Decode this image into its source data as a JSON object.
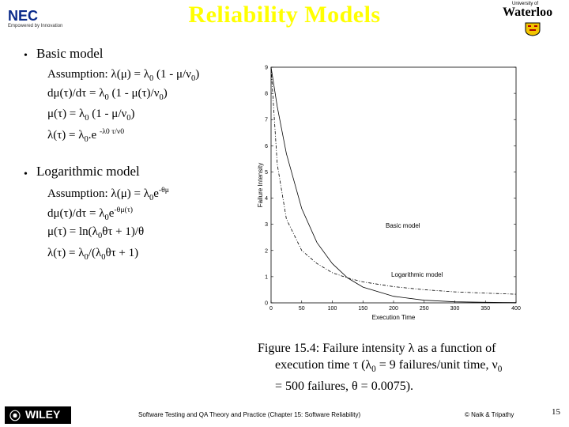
{
  "header": {
    "title": "Reliability Models",
    "left_logo_text": "NEC",
    "left_logo_tagline": "Empowered by Innovation",
    "right_logo_top": "University of",
    "right_logo_name": "Waterloo"
  },
  "sections": [
    {
      "heading": "Basic model",
      "lines": [
        "Assumption: λ(μ) = λ0 (1 - μ/ν0)",
        "dμ(τ)/dτ = λ0 (1 - μ(τ)/ν0)",
        "μ(τ) = λ0 (1 - μ/ν0)",
        "λ(τ) = λ0.e -λ0 τ/ν0"
      ]
    },
    {
      "heading": "Logarithmic model",
      "lines": [
        "Assumption: λ(μ) = λ0e-θμ",
        "dμ(τ)/dτ = λ0e-θμ(τ)",
        "μ(τ) = ln(λ0θτ + 1)/θ",
        "λ(τ) = λ0/(λ0θτ + 1)"
      ]
    }
  ],
  "chart_data": {
    "type": "line",
    "xlabel": "Execution Time",
    "ylabel": "Failure Intensity",
    "xlim": [
      0,
      400
    ],
    "ylim": [
      0,
      9
    ],
    "x_ticks": [
      "0",
      "50",
      "100",
      "150",
      "200",
      "250",
      "300",
      "350",
      "400"
    ],
    "y_ticks": [
      "0",
      "1",
      "2",
      "3",
      "4",
      "5",
      "6",
      "7",
      "8",
      "9"
    ],
    "annotations": [
      "Basic model",
      "Logarithmic model"
    ],
    "series": [
      {
        "name": "Basic model",
        "style": "solid",
        "x": [
          0,
          10,
          25,
          50,
          75,
          100,
          125,
          150,
          200,
          250,
          300,
          350,
          400
        ],
        "y": [
          9.0,
          7.5,
          5.7,
          3.6,
          2.3,
          1.5,
          0.95,
          0.6,
          0.25,
          0.1,
          0.04,
          0.02,
          0.01
        ]
      },
      {
        "name": "Logarithmic model",
        "style": "dashed",
        "x": [
          0,
          10,
          25,
          50,
          75,
          100,
          125,
          150,
          200,
          250,
          300,
          350,
          400
        ],
        "y": [
          9.0,
          5.3,
          3.2,
          2.0,
          1.5,
          1.15,
          0.95,
          0.8,
          0.62,
          0.5,
          0.42,
          0.37,
          0.33
        ]
      }
    ]
  },
  "caption": {
    "line1": "Figure 15.4: Failure intensity λ as a function of",
    "line2": "execution time τ (λ0 = 9 failures/unit time, ν0",
    "line3": "= 500 failures, θ = 0.0075)."
  },
  "footer": {
    "publisher_logo": "WILEY",
    "text": "Software Testing and QA Theory and Practice (Chapter 15: Software Reliability)",
    "copyright": "© Naik & Tripathy",
    "page_number": "15"
  }
}
